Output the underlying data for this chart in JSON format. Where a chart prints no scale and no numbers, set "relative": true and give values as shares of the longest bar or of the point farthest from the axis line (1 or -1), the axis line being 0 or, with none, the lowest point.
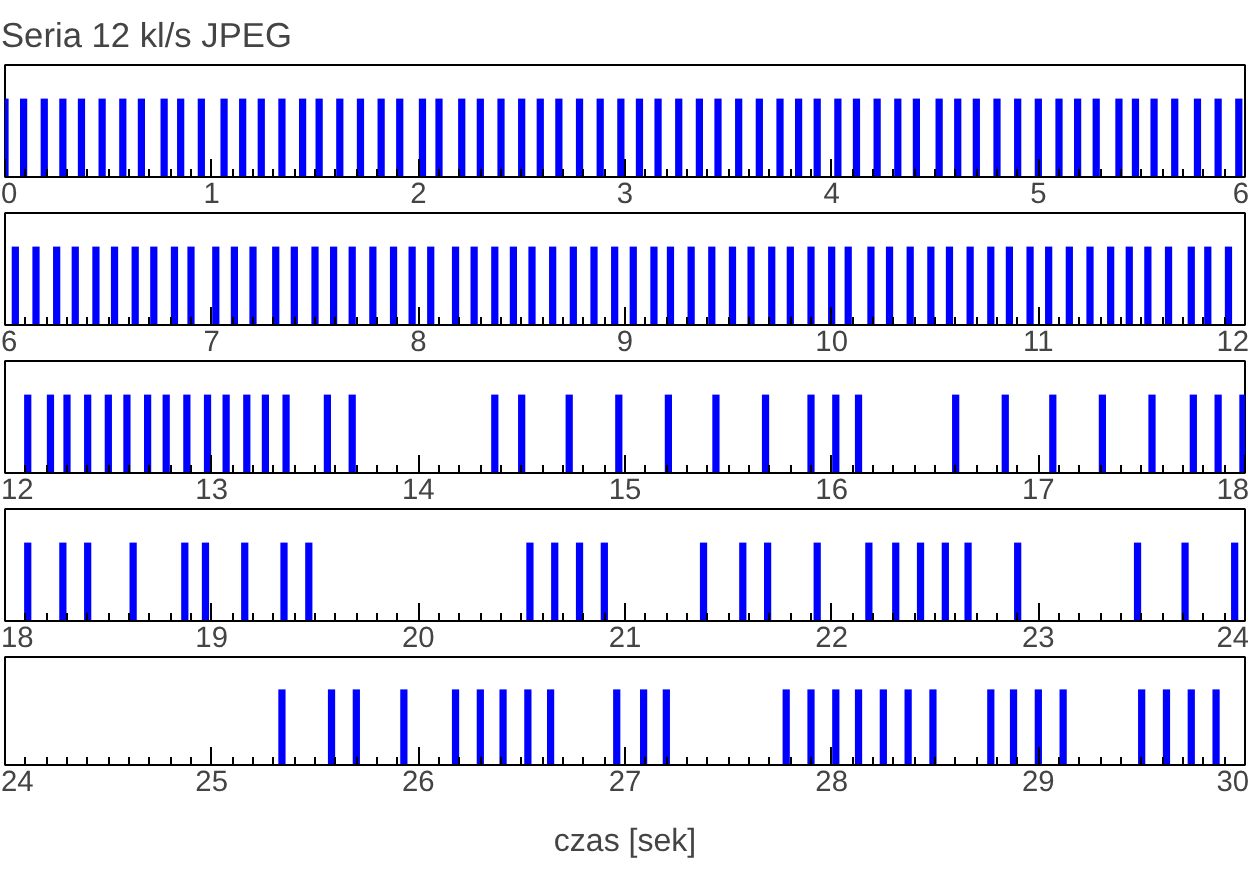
{
  "chart_data": [
    {
      "type": "bar",
      "title": "Seria 12 kl/s JPEG",
      "relative": true,
      "color": "#0000ff",
      "xlim": [
        0,
        6
      ],
      "xticks": [
        0,
        1,
        2,
        3,
        4,
        5,
        6
      ],
      "x": [
        0.0,
        0.09,
        0.19,
        0.28,
        0.37,
        0.47,
        0.57,
        0.66,
        0.77,
        0.85,
        0.95,
        1.06,
        1.15,
        1.24,
        1.34,
        1.44,
        1.52,
        1.62,
        1.72,
        1.82,
        1.91,
        2.02,
        2.1,
        2.21,
        2.3,
        2.4,
        2.5,
        2.59,
        2.68,
        2.78,
        2.88,
        2.98,
        3.07,
        3.16,
        3.26,
        3.36,
        3.45,
        3.55,
        3.65,
        3.75,
        3.84,
        3.93,
        4.03,
        4.12,
        4.22,
        4.32,
        4.41,
        4.52,
        4.61,
        4.7,
        4.8,
        4.9,
        5.0,
        5.1,
        5.19,
        5.28,
        5.39,
        5.47,
        5.56,
        5.66,
        5.77,
        5.87,
        5.97
      ],
      "values": [
        1,
        1,
        1,
        1,
        1,
        1,
        1,
        1,
        1,
        1,
        1,
        1,
        1,
        1,
        1,
        1,
        1,
        1,
        1,
        1,
        1,
        1,
        1,
        1,
        1,
        1,
        1,
        1,
        1,
        1,
        1,
        1,
        1,
        1,
        1,
        1,
        1,
        1,
        1,
        1,
        1,
        1,
        1,
        1,
        1,
        1,
        1,
        1,
        1,
        1,
        1,
        1,
        1,
        1,
        1,
        1,
        1,
        1,
        1,
        1,
        1,
        1,
        1
      ]
    },
    {
      "type": "bar",
      "relative": true,
      "color": "#0000ff",
      "xlim": [
        6,
        12
      ],
      "xticks": [
        6,
        7,
        8,
        9,
        10,
        11,
        12
      ],
      "x": [
        6.05,
        6.15,
        6.25,
        6.34,
        6.44,
        6.53,
        6.63,
        6.72,
        6.82,
        6.9,
        7.02,
        7.11,
        7.2,
        7.31,
        7.4,
        7.5,
        7.59,
        7.68,
        7.78,
        7.88,
        7.97,
        8.06,
        8.18,
        8.27,
        8.37,
        8.46,
        8.55,
        8.65,
        8.75,
        8.85,
        8.95,
        9.04,
        9.14,
        9.22,
        9.32,
        9.42,
        9.52,
        9.61,
        9.71,
        9.8,
        9.9,
        10.0,
        10.08,
        10.19,
        10.28,
        10.38,
        10.48,
        10.57,
        10.67,
        10.77,
        10.86,
        10.96,
        11.05,
        11.15,
        11.25,
        11.35,
        11.44,
        11.53,
        11.63,
        11.74,
        11.82,
        11.92
      ],
      "values": [
        1,
        1,
        1,
        1,
        1,
        1,
        1,
        1,
        1,
        1,
        1,
        1,
        1,
        1,
        1,
        1,
        1,
        1,
        1,
        1,
        1,
        1,
        1,
        1,
        1,
        1,
        1,
        1,
        1,
        1,
        1,
        1,
        1,
        1,
        1,
        1,
        1,
        1,
        1,
        1,
        1,
        1,
        1,
        1,
        1,
        1,
        1,
        1,
        1,
        1,
        1,
        1,
        1,
        1,
        1,
        1,
        1,
        1,
        1,
        1,
        1,
        1
      ]
    },
    {
      "type": "bar",
      "relative": true,
      "color": "#0000ff",
      "xlim": [
        12,
        18
      ],
      "xticks": [
        12,
        13,
        14,
        15,
        16,
        17,
        18
      ],
      "x": [
        12.11,
        12.22,
        12.3,
        12.4,
        12.5,
        12.59,
        12.69,
        12.78,
        12.88,
        12.98,
        13.07,
        13.17,
        13.26,
        13.36,
        13.56,
        13.68,
        14.37,
        14.5,
        14.73,
        14.97,
        15.21,
        15.44,
        15.68,
        15.9,
        16.02,
        16.13,
        16.6,
        16.84,
        17.07,
        17.31,
        17.55,
        17.75,
        17.87,
        17.99
      ],
      "values": [
        1,
        1,
        1,
        1,
        1,
        1,
        1,
        1,
        1,
        1,
        1,
        1,
        1,
        1,
        1,
        1,
        1,
        1,
        1,
        1,
        1,
        1,
        1,
        1,
        1,
        1,
        1,
        1,
        1,
        1,
        1,
        1,
        1,
        1
      ]
    },
    {
      "type": "bar",
      "relative": true,
      "color": "#0000ff",
      "xlim": [
        18,
        24
      ],
      "xticks": [
        18,
        19,
        20,
        21,
        22,
        23,
        24
      ],
      "x": [
        18.11,
        18.28,
        18.4,
        18.62,
        18.87,
        18.97,
        19.16,
        19.35,
        19.47,
        20.54,
        20.66,
        20.78,
        20.9,
        21.38,
        21.57,
        21.69,
        21.93,
        22.18,
        22.31,
        22.43,
        22.55,
        22.66,
        22.9,
        23.48,
        23.71,
        23.95
      ],
      "values": [
        1,
        1,
        1,
        1,
        1,
        1,
        1,
        1,
        1,
        1,
        1,
        1,
        1,
        1,
        1,
        1,
        1,
        1,
        1,
        1,
        1,
        1,
        1,
        1,
        1,
        1
      ]
    },
    {
      "type": "bar",
      "relative": true,
      "color": "#0000ff",
      "xlim": [
        24,
        30
      ],
      "xticks": [
        24,
        25,
        26,
        27,
        28,
        29,
        30
      ],
      "xlabel": "czas [sek]",
      "x": [
        25.34,
        25.58,
        25.7,
        25.93,
        26.18,
        26.3,
        26.41,
        26.53,
        26.64,
        26.96,
        27.09,
        27.2,
        27.78,
        27.9,
        28.02,
        28.13,
        28.25,
        28.37,
        28.49,
        28.77,
        28.88,
        29.0,
        29.12,
        29.5,
        29.62,
        29.74,
        29.86
      ],
      "values": [
        1,
        1,
        1,
        1,
        1,
        1,
        1,
        1,
        1,
        1,
        1,
        1,
        1,
        1,
        1,
        1,
        1,
        1,
        1,
        1,
        1,
        1,
        1,
        1,
        1,
        1,
        1
      ]
    }
  ]
}
